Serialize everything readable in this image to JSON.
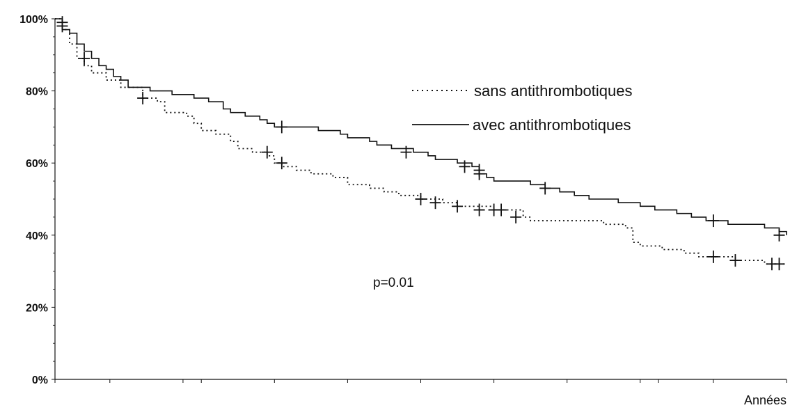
{
  "chart_data": {
    "type": "line",
    "xlabel": "Années",
    "ylabel": "",
    "ylim": [
      0,
      100
    ],
    "xlim": [
      0,
      100
    ],
    "x_tick_values": [
      0,
      7.5,
      17.5,
      20,
      30,
      40,
      50,
      60,
      70,
      80,
      82.5,
      90,
      100
    ],
    "y_ticks": [
      "0%",
      "20%",
      "40%",
      "60%",
      "80%",
      "100%"
    ],
    "grid": false,
    "legend_position": "top-right",
    "annotation": "p=0.01",
    "series": [
      {
        "name": "sans antithrombotiques",
        "style": "dotted",
        "color": "#111111",
        "points": [
          [
            0,
            100
          ],
          [
            1,
            97
          ],
          [
            2,
            93
          ],
          [
            3,
            89
          ],
          [
            4,
            87
          ],
          [
            5,
            85
          ],
          [
            7,
            83
          ],
          [
            9,
            81
          ],
          [
            12,
            78
          ],
          [
            14,
            77
          ],
          [
            15,
            74
          ],
          [
            18,
            73
          ],
          [
            19,
            71
          ],
          [
            20,
            69
          ],
          [
            22,
            68
          ],
          [
            24,
            66
          ],
          [
            25,
            64
          ],
          [
            27,
            63
          ],
          [
            29,
            62
          ],
          [
            30,
            60
          ],
          [
            31,
            59
          ],
          [
            33,
            58
          ],
          [
            35,
            57
          ],
          [
            38,
            56
          ],
          [
            40,
            54
          ],
          [
            43,
            53
          ],
          [
            45,
            52
          ],
          [
            47,
            51
          ],
          [
            50,
            50
          ],
          [
            52,
            50
          ],
          [
            53,
            49
          ],
          [
            55,
            48
          ],
          [
            60,
            47
          ],
          [
            63,
            47
          ],
          [
            64,
            45
          ],
          [
            65,
            44
          ],
          [
            70,
            44
          ],
          [
            75,
            43
          ],
          [
            78,
            42
          ],
          [
            79,
            38
          ],
          [
            80,
            37
          ],
          [
            83,
            36
          ],
          [
            86,
            35
          ],
          [
            88,
            34
          ],
          [
            91,
            34
          ],
          [
            93,
            33
          ],
          [
            95,
            33
          ],
          [
            97,
            32
          ],
          [
            100,
            32
          ]
        ],
        "censored": [
          [
            1,
            98
          ],
          [
            4,
            89
          ],
          [
            12,
            78
          ],
          [
            29,
            63
          ],
          [
            31,
            60
          ],
          [
            50,
            50
          ],
          [
            52,
            49
          ],
          [
            55,
            48
          ],
          [
            58,
            47
          ],
          [
            60,
            47
          ],
          [
            61,
            47
          ],
          [
            63,
            45
          ],
          [
            90,
            34
          ],
          [
            93,
            33
          ],
          [
            98,
            32
          ],
          [
            99,
            32
          ]
        ]
      },
      {
        "name": "avec antithrombotiques",
        "style": "solid",
        "color": "#111111",
        "points": [
          [
            0,
            100
          ],
          [
            1,
            97
          ],
          [
            2,
            96
          ],
          [
            3,
            93
          ],
          [
            4,
            91
          ],
          [
            5,
            89
          ],
          [
            6,
            87
          ],
          [
            7,
            86
          ],
          [
            8,
            84
          ],
          [
            9,
            83
          ],
          [
            10,
            81
          ],
          [
            13,
            80
          ],
          [
            16,
            79
          ],
          [
            19,
            78
          ],
          [
            21,
            77
          ],
          [
            23,
            75
          ],
          [
            24,
            74
          ],
          [
            26,
            73
          ],
          [
            28,
            72
          ],
          [
            29,
            71
          ],
          [
            30,
            70
          ],
          [
            33,
            70
          ],
          [
            36,
            69
          ],
          [
            39,
            68
          ],
          [
            40,
            67
          ],
          [
            43,
            66
          ],
          [
            44,
            65
          ],
          [
            46,
            64
          ],
          [
            48,
            64
          ],
          [
            49,
            63
          ],
          [
            51,
            62
          ],
          [
            52,
            61
          ],
          [
            55,
            60
          ],
          [
            57,
            59
          ],
          [
            58,
            57
          ],
          [
            59,
            56
          ],
          [
            60,
            55
          ],
          [
            64,
            55
          ],
          [
            65,
            54
          ],
          [
            67,
            53
          ],
          [
            69,
            52
          ],
          [
            71,
            51
          ],
          [
            73,
            50
          ],
          [
            75,
            50
          ],
          [
            77,
            49
          ],
          [
            80,
            48
          ],
          [
            82,
            47
          ],
          [
            85,
            46
          ],
          [
            87,
            45
          ],
          [
            89,
            44
          ],
          [
            92,
            43
          ],
          [
            95,
            43
          ],
          [
            97,
            42
          ],
          [
            99,
            41
          ],
          [
            100,
            40
          ]
        ],
        "censored": [
          [
            1,
            99
          ],
          [
            31,
            70
          ],
          [
            48,
            63
          ],
          [
            56,
            59
          ],
          [
            58,
            58
          ],
          [
            58,
            57
          ],
          [
            67,
            53
          ],
          [
            90,
            44
          ],
          [
            99,
            40
          ]
        ]
      }
    ]
  }
}
